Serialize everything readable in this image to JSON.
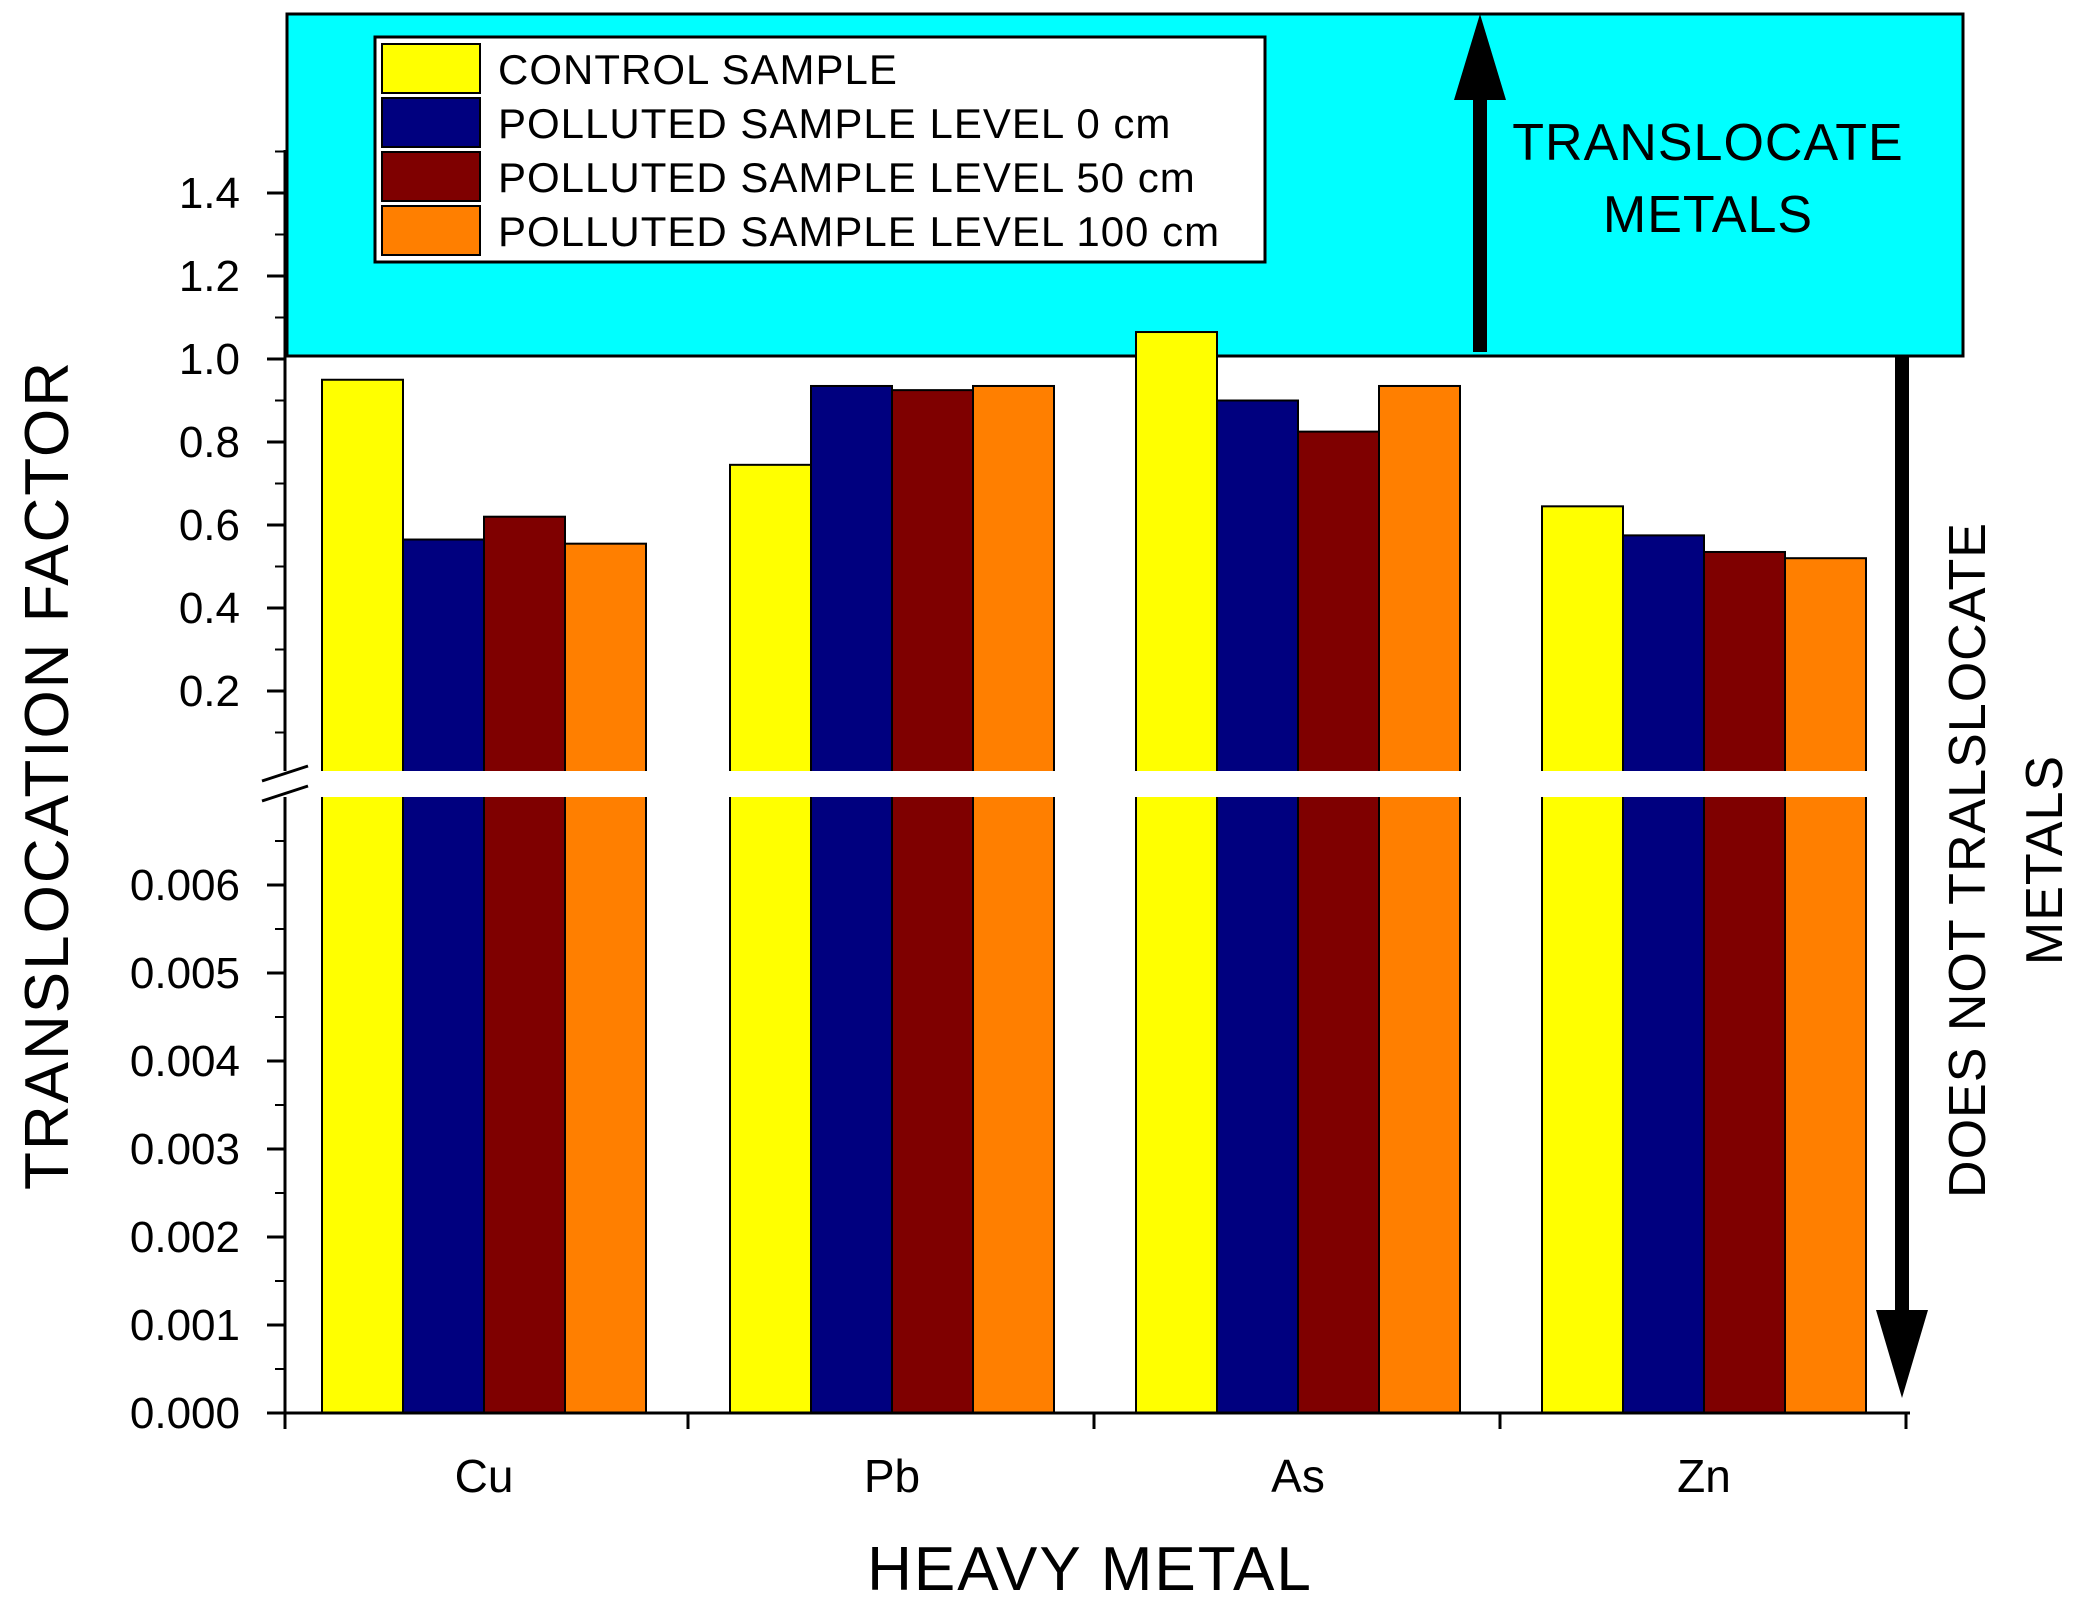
{
  "chart_data": {
    "type": "bar",
    "title": "",
    "xlabel": "HEAVY METAL",
    "ylabel": "TRANSLOCATION FACTOR",
    "categories": [
      "Cu",
      "Pb",
      "As",
      "Zn"
    ],
    "series": [
      {
        "name": "CONTROL SAMPLE",
        "color": "#FFFF00",
        "values": [
          0.95,
          0.745,
          1.065,
          0.645
        ]
      },
      {
        "name": "POLLUTED SAMPLE LEVEL 0 cm",
        "color": "#00007F",
        "values": [
          0.565,
          0.935,
          0.9,
          0.575
        ]
      },
      {
        "name": "POLLUTED SAMPLE LEVEL 50 cm",
        "color": "#7F0000",
        "values": [
          0.62,
          0.925,
          0.825,
          0.535
        ]
      },
      {
        "name": "POLLUTED SAMPLE LEVEL 100 cm",
        "color": "#FF7F00",
        "values": [
          0.555,
          0.935,
          0.935,
          0.52
        ]
      }
    ],
    "y_axis_break": {
      "lower_segment": {
        "range": [
          0,
          0.007
        ],
        "ticks": [
          "0.000",
          "0.001",
          "0.002",
          "0.003",
          "0.004",
          "0.005",
          "0.006"
        ]
      },
      "upper_segment": {
        "range": [
          0.007,
          1.5
        ],
        "ticks": [
          "0.2",
          "0.4",
          "0.6",
          "0.8",
          "1.0",
          "1.2",
          "1.4"
        ]
      }
    },
    "threshold": 1.0,
    "legend_position": "top-left",
    "annotations": {
      "above_threshold": [
        "TRANSLOCATE",
        "METALS"
      ],
      "below_threshold": [
        "DOES NOT TRALSLOCATE",
        "METALS"
      ],
      "above_region_color": "#00FFFF"
    }
  }
}
